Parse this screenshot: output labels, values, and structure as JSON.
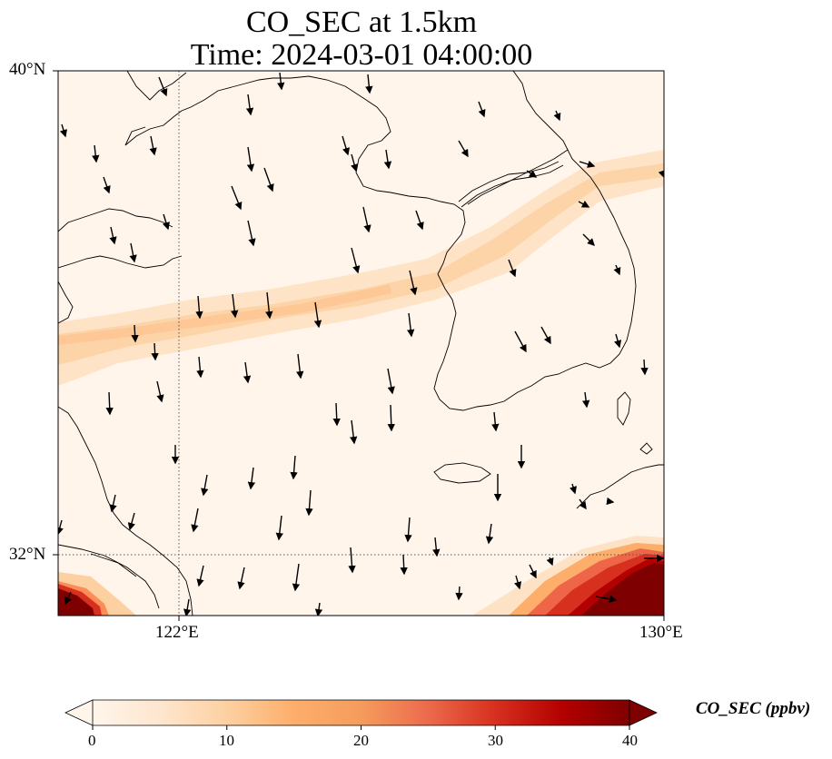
{
  "title": {
    "line1": "CO_SEC at 1.5km",
    "line2": "Time: 2024-03-01 04:00:00"
  },
  "map": {
    "lat_range": [
      31,
      40
    ],
    "lon_range": [
      120,
      130
    ],
    "lat_ticks": [
      "40°N",
      "32°N"
    ],
    "lon_ticks": [
      "122°E",
      "130°E"
    ],
    "gridline_style": "dotted",
    "coastline_color": "#000000"
  },
  "colorbar": {
    "title": "CO_SEC (ppbv)",
    "min": 0,
    "max": 40,
    "ticks": [
      "0",
      "10",
      "20",
      "30",
      "40"
    ],
    "colormap": [
      "#fff5eb",
      "#fee6ce",
      "#fdd0a2",
      "#fdae6b",
      "#fd8d3c",
      "#f16913",
      "#d94801",
      "#a63603",
      "#7f0000"
    ],
    "extend": "both"
  },
  "field": {
    "plume": "band of ~10-15 ppbv from 120°E,35.8°N rising ENE to 130°E,38.3°N",
    "hotspots": [
      {
        "region": "southwest corner",
        "value_max": 40
      },
      {
        "region": "southeast corner",
        "value_max": 40
      }
    ]
  }
}
